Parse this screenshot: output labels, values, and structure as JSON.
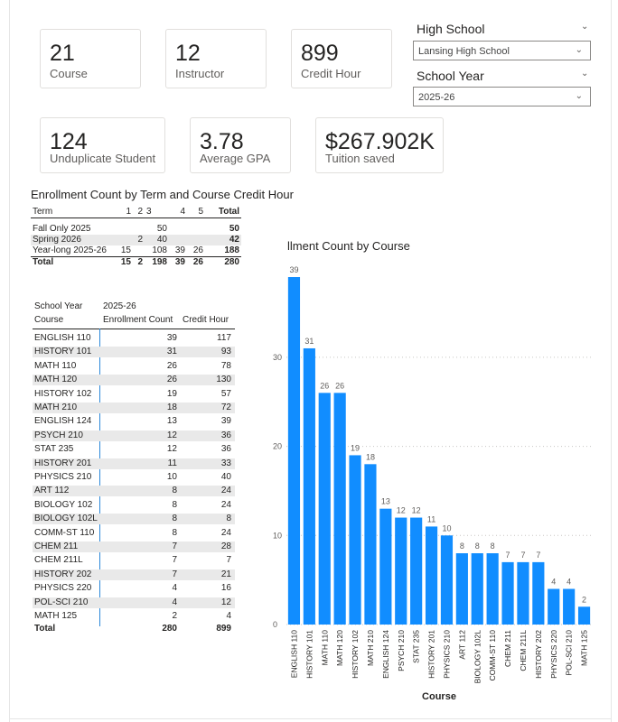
{
  "kpis": [
    {
      "value": "21",
      "label": "Course"
    },
    {
      "value": "12",
      "label": "Instructor"
    },
    {
      "value": "899",
      "label": "Credit Hour"
    },
    {
      "value": "124",
      "label": "Unduplicate Student"
    },
    {
      "value": "3.78",
      "label": "Average GPA"
    },
    {
      "value": "$267.902K",
      "label": "Tuition saved"
    }
  ],
  "slicers": {
    "high_school": {
      "title": "High School",
      "selected": "Lansing High School"
    },
    "school_year": {
      "title": "School Year",
      "selected": "2025-26"
    }
  },
  "term_matrix": {
    "title": "Enrollment Count by Term and Course Credit Hour",
    "headers": [
      "Term",
      "1",
      "2",
      "3",
      "4",
      "5",
      "Total"
    ],
    "rows": [
      [
        "Fall Only 2025",
        "",
        "",
        "50",
        "",
        "",
        "50"
      ],
      [
        "Spring 2026",
        "",
        "2",
        "40",
        "",
        "",
        "42"
      ],
      [
        "Year-long 2025-26",
        "15",
        "",
        "108",
        "39",
        "26",
        "188"
      ]
    ],
    "total": [
      "Total",
      "15",
      "2",
      "198",
      "39",
      "26",
      "280"
    ]
  },
  "course_table": {
    "header_school_year": "School Year",
    "header_year_value": "2025-26",
    "header_course": "Course",
    "header_enrollment": "Enrollment Count",
    "header_credit": "Credit Hour",
    "rows": [
      [
        "ENGLISH 110",
        "39",
        "117"
      ],
      [
        "HISTORY 101",
        "31",
        "93"
      ],
      [
        "MATH 110",
        "26",
        "78"
      ],
      [
        "MATH 120",
        "26",
        "130"
      ],
      [
        "HISTORY 102",
        "19",
        "57"
      ],
      [
        "MATH 210",
        "18",
        "72"
      ],
      [
        "ENGLISH 124",
        "13",
        "39"
      ],
      [
        "PSYCH 210",
        "12",
        "36"
      ],
      [
        "STAT 235",
        "12",
        "36"
      ],
      [
        "HISTORY 201",
        "11",
        "33"
      ],
      [
        "PHYSICS 210",
        "10",
        "40"
      ],
      [
        "ART 112",
        "8",
        "24"
      ],
      [
        "BIOLOGY 102",
        "8",
        "24"
      ],
      [
        "BIOLOGY 102L",
        "8",
        "8"
      ],
      [
        "COMM-ST 110",
        "8",
        "24"
      ],
      [
        "CHEM 211",
        "7",
        "28"
      ],
      [
        "CHEM 211L",
        "7",
        "7"
      ],
      [
        "HISTORY 202",
        "7",
        "21"
      ],
      [
        "PHYSICS 220",
        "4",
        "16"
      ],
      [
        "POL-SCI 210",
        "4",
        "12"
      ],
      [
        "MATH 125",
        "2",
        "4"
      ]
    ],
    "total": [
      "Total",
      "280",
      "899"
    ]
  },
  "chart_data": {
    "type": "bar",
    "title": "llment Count by Course",
    "xlabel": "Course",
    "ylabel": "",
    "ylim": [
      0,
      39
    ],
    "yticks": [
      "0",
      "10",
      "20",
      "30"
    ],
    "grid": true,
    "color": "#118dff",
    "categories": [
      "ENGLISH 110",
      "HISTORY 101",
      "MATH 110",
      "MATH 120",
      "HISTORY 102",
      "MATH 210",
      "ENGLISH 124",
      "PSYCH 210",
      "STAT 235",
      "HISTORY 201",
      "PHYSICS 210",
      "ART 112",
      "BIOLOGY 102L",
      "COMM-ST 110",
      "CHEM 211",
      "CHEM 211L",
      "HISTORY 202",
      "PHYSICS 220",
      "POL-SCI 210",
      "MATH 125"
    ],
    "values": [
      39,
      31,
      26,
      26,
      19,
      18,
      13,
      12,
      12,
      11,
      10,
      8,
      8,
      8,
      7,
      7,
      7,
      4,
      4,
      2
    ]
  }
}
